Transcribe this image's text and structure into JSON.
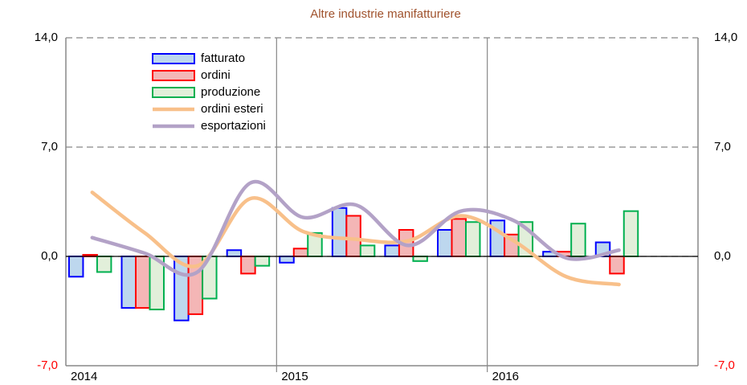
{
  "chart_data": {
    "type": "bar",
    "title": "Altre industrie manifatturiere",
    "title_color": "#a0522d",
    "categories": [
      "2014",
      null,
      null,
      null,
      "2015",
      null,
      null,
      null,
      "2016",
      null,
      null,
      null
    ],
    "series": [
      {
        "name": "fatturato",
        "type": "bar",
        "color": "#bdd7ee",
        "stroke": "#0000ff",
        "values": [
          -1.3,
          -3.3,
          -4.1,
          0.4,
          -0.4,
          3.1,
          0.7,
          1.7,
          2.3,
          0.3,
          0.9,
          null
        ]
      },
      {
        "name": "ordini",
        "type": "bar",
        "color": "#f4b6b6",
        "stroke": "#ff0000",
        "values": [
          0.1,
          -3.3,
          -3.7,
          -1.1,
          0.5,
          2.6,
          1.7,
          2.4,
          1.4,
          0.3,
          -1.1,
          null
        ]
      },
      {
        "name": "produzione",
        "type": "bar",
        "color": "#e2efda",
        "stroke": "#00b050",
        "values": [
          -1.0,
          -3.4,
          -2.7,
          -0.6,
          1.5,
          0.7,
          -0.3,
          2.2,
          2.2,
          2.1,
          2.9,
          null
        ]
      },
      {
        "name": "ordini esteri",
        "type": "line",
        "color": "#f8c08a",
        "values": [
          4.1,
          1.5,
          -0.6,
          3.7,
          1.6,
          1.1,
          1.0,
          2.6,
          1.0,
          -1.3,
          -1.8,
          null
        ]
      },
      {
        "name": "esportazioni",
        "type": "line",
        "color": "#b3a2c7",
        "values": [
          1.2,
          0.2,
          -1.0,
          4.7,
          2.5,
          3.3,
          0.7,
          2.9,
          2.3,
          -0.1,
          0.4,
          null
        ]
      }
    ],
    "ylim": [
      -7,
      14
    ],
    "yticks": [
      {
        "value": -7,
        "label": "-7,0"
      },
      {
        "value": 0,
        "label": "0,0"
      },
      {
        "value": 7,
        "label": "7,0"
      },
      {
        "value": 14,
        "label": "14,0"
      }
    ],
    "y2lim": [
      -7,
      14
    ],
    "y2ticks": [
      {
        "value": -7,
        "label": "-7,0"
      },
      {
        "value": 0,
        "label": "0,0"
      },
      {
        "value": 7,
        "label": "7,0"
      },
      {
        "value": 14,
        "label": "14,0"
      }
    ],
    "negative_tick_color": "#ff0000",
    "grid": true,
    "legend": "top-left"
  }
}
